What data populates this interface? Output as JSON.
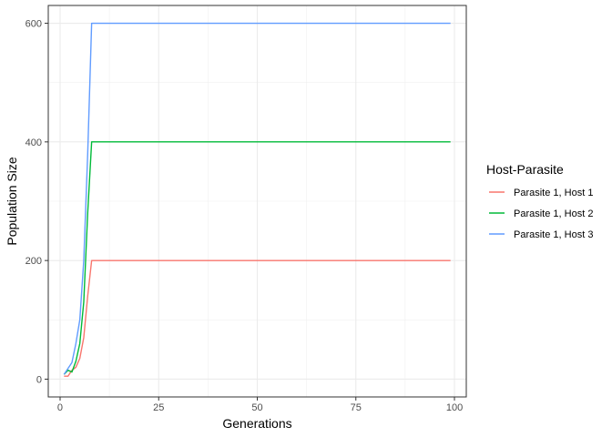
{
  "chart_data": {
    "type": "line",
    "title": "",
    "xlabel": "Generations",
    "ylabel": "Population Size",
    "xlim": [
      -3,
      103
    ],
    "ylim": [
      -30,
      630
    ],
    "x_ticks": [
      0,
      25,
      50,
      75,
      100
    ],
    "x_tick_labels": [
      "0",
      "25",
      "50",
      "75",
      "100"
    ],
    "y_ticks": [
      0,
      200,
      400,
      600
    ],
    "y_tick_labels": [
      "0",
      "200",
      "400",
      "600"
    ],
    "grid": true,
    "legend": {
      "title": "Host-Parasite",
      "position": "right"
    },
    "series": [
      {
        "name": "Parasite 1, Host 1",
        "color": "#F8766D",
        "x": [
          1,
          2,
          3,
          4,
          5,
          6,
          7,
          8,
          99
        ],
        "y": [
          5,
          5,
          15,
          20,
          35,
          70,
          140,
          200,
          200
        ]
      },
      {
        "name": "Parasite 1, Host 2",
        "color": "#00BA38",
        "x": [
          1,
          2,
          3,
          4,
          5,
          6,
          7,
          8,
          99
        ],
        "y": [
          8,
          15,
          12,
          30,
          60,
          130,
          280,
          400,
          400
        ]
      },
      {
        "name": "Parasite 1, Host 3",
        "color": "#619CFF",
        "x": [
          1,
          2,
          3,
          4,
          5,
          6,
          7,
          8,
          99
        ],
        "y": [
          8,
          18,
          28,
          60,
          100,
          200,
          380,
          600,
          600
        ]
      }
    ]
  }
}
